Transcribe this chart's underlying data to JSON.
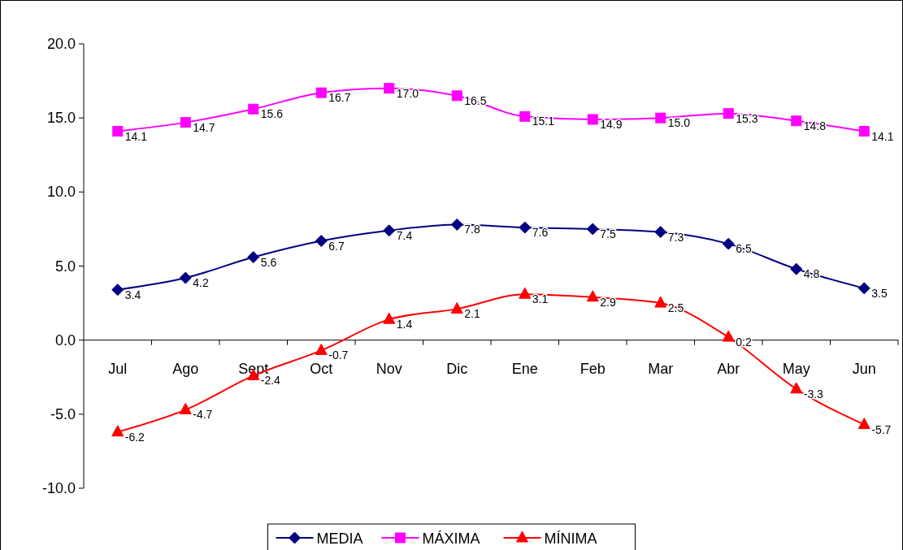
{
  "chart_data": {
    "type": "line",
    "categories": [
      "Jul",
      "Ago",
      "Sept",
      "Oct",
      "Nov",
      "Dic",
      "Ene",
      "Feb",
      "Mar",
      "Abr",
      "May",
      "Jun"
    ],
    "series": [
      {
        "name": "MEDIA",
        "color": "#000080",
        "marker": "diamond",
        "values": [
          3.4,
          4.2,
          5.6,
          6.7,
          7.4,
          7.8,
          7.6,
          7.5,
          7.3,
          6.5,
          4.8,
          3.5
        ],
        "value_labels": [
          "3.4",
          "4.2",
          "5.6",
          "6.7",
          "7.4",
          "7.8",
          "7.6",
          "7.5",
          "7.3",
          "6.5",
          "4.8",
          "3.5"
        ]
      },
      {
        "name": "MÁXIMA",
        "color": "#ff00ff",
        "marker": "square",
        "values": [
          14.1,
          14.7,
          15.6,
          16.7,
          17.0,
          16.5,
          15.1,
          14.9,
          15.0,
          15.3,
          14.8,
          14.1
        ],
        "value_labels": [
          "14.1",
          "14.7",
          "15.6",
          "16.7",
          "17.0",
          "16.5",
          "15.1",
          "14.9",
          "15.0",
          "15.3",
          "14.8",
          "14.1"
        ]
      },
      {
        "name": "MÍNIMA",
        "color": "#ff0000",
        "marker": "triangle",
        "values": [
          -6.2,
          -4.7,
          -2.4,
          -0.7,
          1.4,
          2.1,
          3.1,
          2.9,
          2.5,
          0.2,
          -3.3,
          -5.7
        ],
        "value_labels": [
          "-6.2",
          "-4.7",
          "-2.4",
          "-0.7",
          "1.4",
          "2.1",
          "3.1",
          "2.9",
          "2.5",
          "0.2",
          "-3.3",
          "-5.7"
        ]
      }
    ],
    "ylim": [
      -10,
      20
    ],
    "yticks": [
      {
        "value": -10,
        "label": "-10.0"
      },
      {
        "value": -5,
        "label": "-5.0"
      },
      {
        "value": 0,
        "label": "0.0"
      },
      {
        "value": 5,
        "label": "5.0"
      },
      {
        "value": 10,
        "label": "10.0"
      },
      {
        "value": 15,
        "label": "15.0"
      },
      {
        "value": 20,
        "label": "20.0"
      }
    ],
    "grid": false,
    "legend": "bottom"
  }
}
